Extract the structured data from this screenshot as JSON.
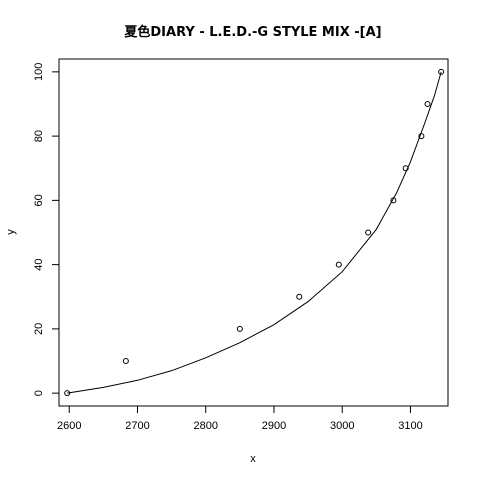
{
  "chart_data": {
    "type": "scatter",
    "title": "夏色DIARY - L.E.D.-G STYLE MIX -[A]",
    "xlabel": "x",
    "ylabel": "y",
    "xlim": [
      2585,
      3155
    ],
    "ylim": [
      -4,
      104
    ],
    "x_ticks": [
      2600,
      2700,
      2800,
      2900,
      3000,
      3100
    ],
    "y_ticks": [
      0,
      20,
      40,
      60,
      80,
      100
    ],
    "grid": false,
    "legend": "none",
    "points": [
      {
        "x": 2597,
        "y": 0
      },
      {
        "x": 2683,
        "y": 10
      },
      {
        "x": 2850,
        "y": 20
      },
      {
        "x": 2937,
        "y": 30
      },
      {
        "x": 2995,
        "y": 40
      },
      {
        "x": 3038,
        "y": 50
      },
      {
        "x": 3075,
        "y": 60
      },
      {
        "x": 3093,
        "y": 70
      },
      {
        "x": 3116,
        "y": 80
      },
      {
        "x": 3125,
        "y": 90
      },
      {
        "x": 3145,
        "y": 100
      }
    ],
    "fit_line": [
      {
        "x": 2597,
        "y": 0
      },
      {
        "x": 2650,
        "y": 1.8
      },
      {
        "x": 2700,
        "y": 4.0
      },
      {
        "x": 2750,
        "y": 7.0
      },
      {
        "x": 2800,
        "y": 11.0
      },
      {
        "x": 2850,
        "y": 15.7
      },
      {
        "x": 2900,
        "y": 21.3
      },
      {
        "x": 2950,
        "y": 28.5
      },
      {
        "x": 3000,
        "y": 37.8
      },
      {
        "x": 3050,
        "y": 51.0
      },
      {
        "x": 3080,
        "y": 62.5
      },
      {
        "x": 3100,
        "y": 72.0
      },
      {
        "x": 3120,
        "y": 83.5
      },
      {
        "x": 3135,
        "y": 92.5
      },
      {
        "x": 3145,
        "y": 100
      }
    ],
    "colors": {
      "points": "#000000",
      "line": "#000000",
      "axes": "#000000"
    }
  }
}
